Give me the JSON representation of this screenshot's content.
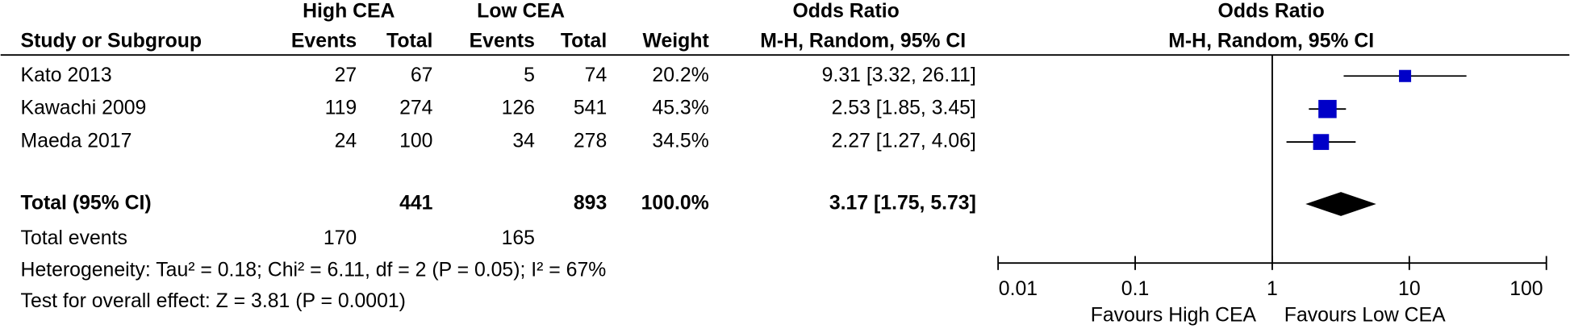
{
  "chart_data": {
    "type": "forest",
    "group_headers": [
      "High CEA",
      "Low CEA",
      "Odds Ratio",
      "Odds Ratio"
    ],
    "columns": [
      "Study or Subgroup",
      "Events",
      "Total",
      "Events",
      "Total",
      "Weight",
      "M-H, Random, 95% CI",
      "M-H, Random, 95% CI"
    ],
    "studies": [
      "Kato 2013",
      "Kawachi 2009",
      "Maeda 2017"
    ],
    "high_events": [
      27,
      119,
      24
    ],
    "high_total": [
      67,
      274,
      100
    ],
    "low_events": [
      5,
      126,
      34
    ],
    "low_total": [
      74,
      541,
      278
    ],
    "weight": {
      "values": [
        20.2,
        45.3,
        34.5
      ],
      "value_labels": [
        "20.2%",
        "45.3%",
        "34.5%"
      ]
    },
    "or": {
      "values": [
        9.31,
        2.53,
        2.27
      ],
      "value_labels": [
        "9.31 [3.32, 26.11]",
        "2.53 [1.85, 3.45]",
        "2.27 [1.27, 4.06]"
      ]
    },
    "ci_low": [
      3.32,
      1.85,
      1.27
    ],
    "ci_high": [
      26.11,
      3.45,
      4.06
    ],
    "total": {
      "label": "Total (95% CI)",
      "high_total": 441,
      "low_total": 893,
      "weight": {
        "value": 100.0,
        "label": "100.0%"
      },
      "or": {
        "value": 3.17,
        "label": "3.17 [1.75, 5.73]"
      },
      "ci_low": 1.75,
      "ci_high": 5.73
    },
    "total_events": {
      "label": "Total events",
      "high": 170,
      "low": 165
    },
    "heterogeneity": "Heterogeneity: Tau² = 0.18; Chi² = 6.11, df = 2 (P = 0.05); I² = 67%",
    "overall_effect": "Test for overall effect: Z = 3.81 (P = 0.0001)",
    "marker_color": "#0000c8",
    "diamond_color": "#000000",
    "log_x": true,
    "xlim": [
      0.01,
      100
    ],
    "xticks": [
      0.01,
      0.1,
      1,
      10,
      100
    ],
    "x_labels": [
      "Favours High CEA",
      "Favours Low CEA"
    ]
  }
}
